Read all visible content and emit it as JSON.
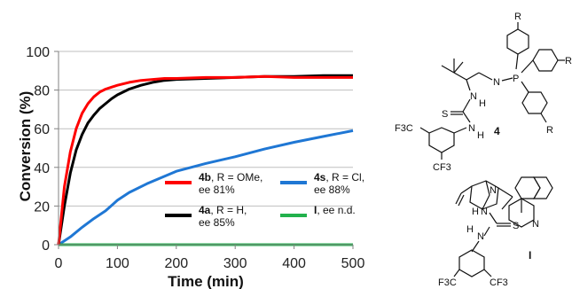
{
  "chart_data": {
    "type": "line",
    "xlabel": "Time (min)",
    "ylabel": "Conversion (%)",
    "xlim": [
      0,
      500
    ],
    "ylim": [
      0,
      100
    ],
    "xticks": [
      "0",
      "100",
      "200",
      "300",
      "400",
      "500"
    ],
    "yticks": [
      "0",
      "20",
      "40",
      "60",
      "80",
      "100"
    ],
    "grid": "horizontal",
    "legend_position": "inside-lower-right",
    "series": [
      {
        "name": "4b, R = OMe, ee 81%",
        "name_bold": "4b",
        "name_rest": ", R = OMe,",
        "name_line2": "ee 81%",
        "color": "#ff0000",
        "x": [
          0,
          10,
          20,
          30,
          40,
          50,
          60,
          70,
          80,
          90,
          100,
          120,
          140,
          160,
          180,
          200,
          250,
          300,
          350,
          400,
          450,
          500
        ],
        "y": [
          0,
          30,
          48,
          60,
          68,
          73,
          76.5,
          79,
          80.5,
          81.5,
          82.5,
          84,
          85,
          85.5,
          86,
          86,
          86.5,
          86.5,
          87,
          86.5,
          86.5,
          86.5
        ]
      },
      {
        "name": "4a, R = H, ee 85%",
        "name_bold": "4a",
        "name_rest": ", R = H,",
        "name_line2": "ee 85%",
        "color": "#000000",
        "x": [
          0,
          10,
          20,
          30,
          40,
          50,
          60,
          70,
          80,
          90,
          100,
          120,
          140,
          160,
          180,
          200,
          250,
          300,
          350,
          400,
          450,
          500
        ],
        "y": [
          0,
          20,
          37,
          49,
          57,
          63,
          67,
          70.5,
          73,
          75.5,
          77.5,
          80.5,
          82.5,
          84,
          85,
          85.5,
          86,
          86.5,
          87,
          87,
          87.5,
          87.5
        ]
      },
      {
        "name": "4s, R = Cl, ee 88%",
        "name_bold": "4s",
        "name_rest": ", R = Cl,",
        "name_line2": "ee 88%",
        "color": "#1f77d4",
        "x": [
          0,
          20,
          40,
          60,
          80,
          100,
          120,
          150,
          200,
          250,
          300,
          350,
          400,
          450,
          500
        ],
        "y": [
          0,
          4,
          9,
          13.5,
          17.5,
          23,
          27,
          31.5,
          38,
          42,
          45.5,
          49.5,
          53,
          56,
          59
        ]
      },
      {
        "name": "I, ee n.d.",
        "name_bold": "I",
        "name_rest": ", ee n.d.",
        "name_line2": "",
        "color": "#22b14c",
        "x": [
          0,
          500
        ],
        "y": [
          0,
          0
        ]
      }
    ]
  },
  "structures": {
    "compound_4_label": "4",
    "compound_I_label": "I",
    "atoms": {
      "r_top": "R",
      "r_side": "R",
      "r_bottom": "R",
      "p": "P",
      "n_imine": "N",
      "nh_upper": "N",
      "h_upper": "H",
      "s_4": "S",
      "nh_lower": "N",
      "h_lower": "H",
      "cf3_left_4": "F3C",
      "cf3_bottom_4": "CF3",
      "n_quinuclidine": "N",
      "n_quinoline": "N",
      "h_i_upper": "H",
      "n_i_upper": "N",
      "h_i_lower": "H",
      "n_i_lower": "N",
      "s_i": "S",
      "cf3_left_i": "F3C",
      "cf3_right_i": "CF3"
    }
  }
}
